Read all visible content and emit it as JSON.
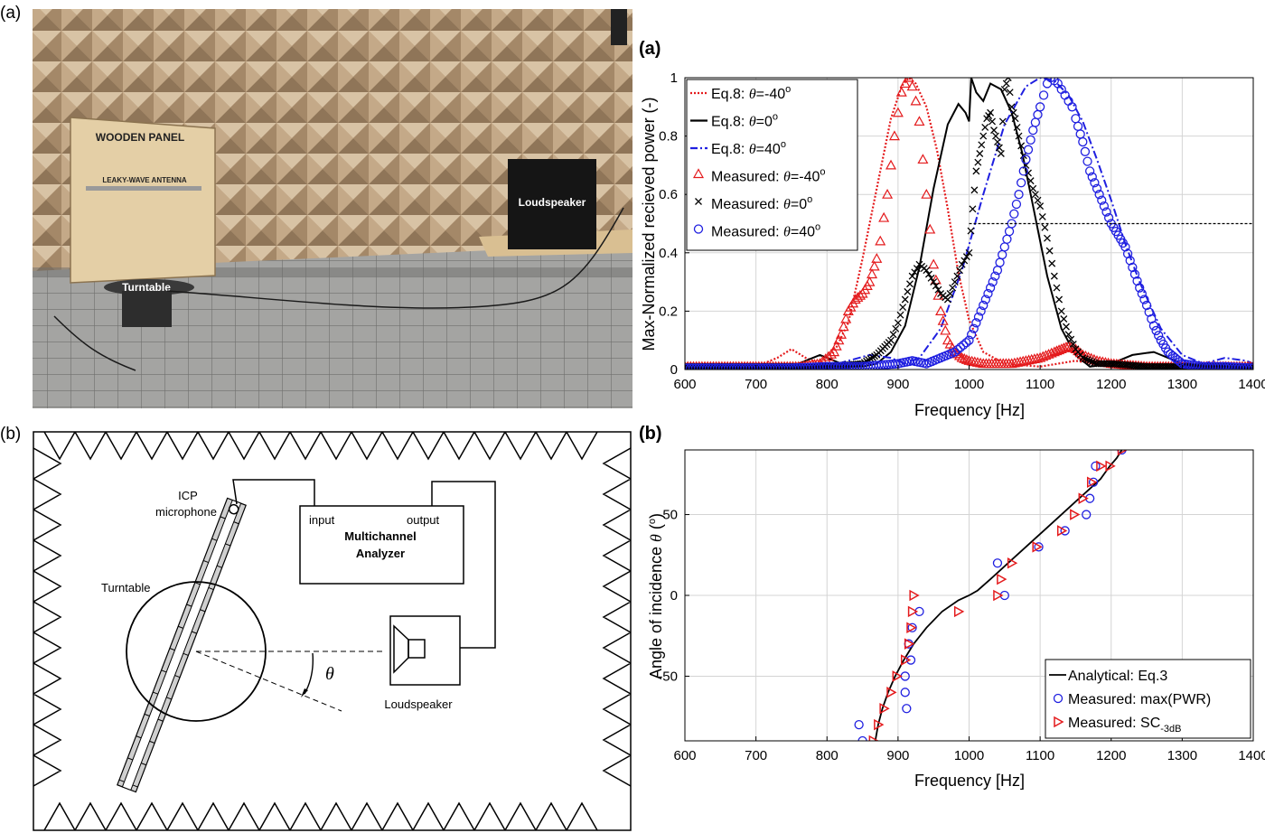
{
  "colors": {
    "red": "#e41a1c",
    "black": "#000000",
    "blue": "#1f1fe0",
    "photo_wall": "#b59a7a",
    "photo_floor": "#9a9a98"
  },
  "photo": {
    "tag": "(a)",
    "label_panel": "WOODEN PANEL",
    "label_antenna": "LEAKY-WAVE ANTENNA",
    "label_speaker": "Loudspeaker",
    "label_turntable": "Turntable"
  },
  "schematic": {
    "tag": "(b)",
    "mic_line1": "ICP",
    "mic_line2": "microphone",
    "input": "input",
    "output": "output",
    "analyzer_line1": "Multichannel",
    "analyzer_line2": "Analyzer",
    "turntable": "Turntable",
    "theta": "θ",
    "loudspeaker": "Loudspeaker"
  },
  "chart_data": [
    {
      "type": "line",
      "tag": "(a)",
      "xlabel": "Frequency [Hz]",
      "ylabel": "Max-Normalized recieved power (-)",
      "xlim": [
        600,
        1400
      ],
      "ylim": [
        0,
        1
      ],
      "xticks": [
        "600",
        "700",
        "800",
        "900",
        "1000",
        "1100",
        "1200",
        "1300",
        "1400"
      ],
      "yticks": [
        "0",
        "0.2",
        "0.4",
        "0.6",
        "0.8",
        "1"
      ],
      "grid": true,
      "legend_position": "top-left",
      "threshold_y": 0.5,
      "legend": [
        {
          "prefix": "Eq.8: ",
          "sym": "θ",
          "suffix": "=-40",
          "sup": "o"
        },
        {
          "prefix": "Eq.8: ",
          "sym": "θ",
          "suffix": "=0",
          "sup": "o"
        },
        {
          "prefix": "Eq.8: ",
          "sym": "θ",
          "suffix": "=40",
          "sup": "o"
        },
        {
          "prefix": "Measured: ",
          "sym": "θ",
          "suffix": "=-40",
          "sup": "o"
        },
        {
          "prefix": "Measured: ",
          "sym": "θ",
          "suffix": "=0",
          "sup": "o"
        },
        {
          "prefix": "Measured: ",
          "sym": "θ",
          "suffix": "=40",
          "sup": "o"
        }
      ],
      "series": [
        {
          "name": "Eq.8: θ=-40°",
          "style": "dotted",
          "color": "#e41a1c",
          "x": [
            600,
            650,
            700,
            730,
            750,
            770,
            790,
            810,
            830,
            850,
            870,
            890,
            905,
            915,
            925,
            940,
            955,
            970,
            985,
            1000,
            1020,
            1050,
            1100,
            1150,
            1200,
            1300,
            1400
          ],
          "y": [
            0.002,
            0.004,
            0.01,
            0.04,
            0.07,
            0.04,
            0.02,
            0.06,
            0.16,
            0.38,
            0.62,
            0.86,
            0.97,
            1.0,
            0.98,
            0.9,
            0.75,
            0.55,
            0.33,
            0.17,
            0.06,
            0.02,
            0.01,
            0.03,
            0.01,
            0.005,
            0.002
          ]
        },
        {
          "name": "Eq.8: θ=0°",
          "style": "solid",
          "color": "#000000",
          "x": [
            600,
            700,
            760,
            790,
            810,
            830,
            850,
            870,
            890,
            910,
            930,
            950,
            970,
            985,
            995,
            1000,
            1003,
            1010,
            1020,
            1030,
            1045,
            1060,
            1075,
            1090,
            1110,
            1130,
            1150,
            1170,
            1200,
            1230,
            1260,
            1300,
            1400
          ],
          "y": [
            0.002,
            0.005,
            0.02,
            0.05,
            0.03,
            0.01,
            0.01,
            0.02,
            0.06,
            0.15,
            0.35,
            0.62,
            0.84,
            0.91,
            0.88,
            0.85,
            1.0,
            0.95,
            0.92,
            0.98,
            0.96,
            0.88,
            0.74,
            0.56,
            0.32,
            0.14,
            0.05,
            0.01,
            0.02,
            0.05,
            0.06,
            0.02,
            0.002
          ]
        },
        {
          "name": "Eq.8: θ=40°",
          "style": "dashdot",
          "color": "#1f1fe0",
          "x": [
            600,
            700,
            800,
            830,
            860,
            890,
            910,
            930,
            960,
            990,
            1020,
            1050,
            1080,
            1100,
            1120,
            1140,
            1160,
            1180,
            1200,
            1220,
            1240,
            1270,
            1300,
            1330,
            1360,
            1390,
            1400
          ],
          "y": [
            0.002,
            0.004,
            0.01,
            0.03,
            0.05,
            0.04,
            0.02,
            0.04,
            0.14,
            0.34,
            0.6,
            0.84,
            0.97,
            1.0,
            0.99,
            0.94,
            0.85,
            0.72,
            0.58,
            0.43,
            0.3,
            0.14,
            0.05,
            0.02,
            0.04,
            0.03,
            0.02
          ]
        },
        {
          "name": "Measured: θ=-40°",
          "style": "triangle",
          "color": "#e41a1c",
          "x": [
            600,
            640,
            680,
            720,
            760,
            790,
            810,
            820,
            830,
            840,
            850,
            860,
            870,
            875,
            880,
            885,
            890,
            895,
            900,
            905,
            910,
            915,
            920,
            925,
            930,
            935,
            940,
            945,
            950,
            960,
            970,
            980,
            990,
            1000,
            1020,
            1040,
            1060,
            1080,
            1100,
            1120,
            1130,
            1140,
            1150,
            1160,
            1180,
            1200,
            1250,
            1300,
            1350,
            1400
          ],
          "y": [
            0.01,
            0.01,
            0.01,
            0.01,
            0.01,
            0.02,
            0.06,
            0.12,
            0.2,
            0.24,
            0.26,
            0.3,
            0.38,
            0.44,
            0.52,
            0.6,
            0.7,
            0.8,
            0.88,
            0.95,
            0.98,
            1.0,
            0.97,
            0.92,
            0.85,
            0.72,
            0.6,
            0.48,
            0.36,
            0.2,
            0.1,
            0.06,
            0.04,
            0.03,
            0.02,
            0.02,
            0.02,
            0.03,
            0.04,
            0.06,
            0.07,
            0.08,
            0.07,
            0.05,
            0.03,
            0.02,
            0.01,
            0.01,
            0.01,
            0.01
          ]
        },
        {
          "name": "Measured: θ=0°",
          "style": "cross",
          "color": "#000000",
          "x": [
            600,
            650,
            700,
            750,
            800,
            850,
            870,
            890,
            900,
            910,
            920,
            930,
            940,
            950,
            960,
            970,
            980,
            990,
            1000,
            1005,
            1010,
            1015,
            1020,
            1025,
            1030,
            1035,
            1040,
            1045,
            1050,
            1055,
            1060,
            1065,
            1070,
            1080,
            1090,
            1100,
            1110,
            1120,
            1130,
            1140,
            1150,
            1160,
            1170,
            1180,
            1200,
            1250,
            1300,
            1400
          ],
          "y": [
            0.01,
            0.01,
            0.01,
            0.01,
            0.01,
            0.02,
            0.05,
            0.1,
            0.16,
            0.24,
            0.32,
            0.36,
            0.34,
            0.3,
            0.26,
            0.24,
            0.3,
            0.36,
            0.4,
            0.55,
            0.68,
            0.74,
            0.8,
            0.86,
            0.88,
            0.82,
            0.78,
            0.74,
            0.96,
            1.0,
            0.9,
            0.86,
            0.8,
            0.7,
            0.62,
            0.56,
            0.45,
            0.32,
            0.2,
            0.12,
            0.07,
            0.04,
            0.03,
            0.02,
            0.02,
            0.01,
            0.01,
            0.01
          ]
        },
        {
          "name": "Measured: θ=40°",
          "style": "circle",
          "color": "#1f1fe0",
          "x": [
            600,
            650,
            700,
            750,
            800,
            850,
            900,
            920,
            940,
            960,
            980,
            1000,
            1010,
            1020,
            1030,
            1040,
            1050,
            1060,
            1070,
            1080,
            1090,
            1100,
            1105,
            1110,
            1115,
            1120,
            1125,
            1130,
            1135,
            1140,
            1145,
            1150,
            1160,
            1170,
            1180,
            1190,
            1200,
            1210,
            1220,
            1230,
            1240,
            1250,
            1260,
            1270,
            1280,
            1290,
            1300,
            1330,
            1360,
            1400
          ],
          "y": [
            0.005,
            0.005,
            0.005,
            0.005,
            0.01,
            0.01,
            0.02,
            0.03,
            0.02,
            0.04,
            0.06,
            0.1,
            0.16,
            0.22,
            0.28,
            0.34,
            0.42,
            0.5,
            0.6,
            0.72,
            0.82,
            0.9,
            0.94,
            0.98,
            1.0,
            0.99,
            0.98,
            0.96,
            0.94,
            0.92,
            0.9,
            0.86,
            0.78,
            0.68,
            0.62,
            0.56,
            0.5,
            0.46,
            0.42,
            0.35,
            0.28,
            0.22,
            0.15,
            0.1,
            0.06,
            0.04,
            0.02,
            0.01,
            0.01,
            0.005
          ]
        }
      ]
    },
    {
      "type": "scatter",
      "tag": "(b)",
      "xlabel": "Frequency [Hz]",
      "ylabel": "Angle of incidence θ (°)",
      "ylabel_prefix": "Angle of incidence ",
      "ylabel_sym": "θ",
      "ylabel_unit": " (",
      "ylabel_unit_sup": "o",
      "ylabel_unit_close": ")",
      "xlim": [
        600,
        1400
      ],
      "ylim": [
        -90,
        90
      ],
      "xticks": [
        "600",
        "700",
        "800",
        "900",
        "1000",
        "1100",
        "1200",
        "1300",
        "1400"
      ],
      "yticks": [
        "-50",
        "0",
        "50"
      ],
      "grid": true,
      "legend_position": "bottom-right",
      "legend": [
        {
          "label": "Analytical: Eq.3",
          "sub": ""
        },
        {
          "label": "Measured: max(PWR)",
          "sub": ""
        },
        {
          "label": "Measured: SC",
          "sub": "-3dB"
        }
      ],
      "series": [
        {
          "name": "Analytical: Eq.3",
          "style": "solid",
          "color": "#000000",
          "x": [
            868,
            872,
            878,
            886,
            896,
            908,
            922,
            940,
            962,
            985,
            1000,
            1012,
            1030,
            1055,
            1080,
            1105,
            1130,
            1150,
            1170,
            1185,
            1198,
            1208,
            1215
          ],
          "y": [
            -90,
            -80,
            -70,
            -60,
            -50,
            -40,
            -30,
            -20,
            -10,
            -3,
            0,
            3,
            10,
            20,
            30,
            40,
            50,
            58,
            66,
            72,
            80,
            85,
            90
          ]
        },
        {
          "name": "Measured: max(PWR)",
          "style": "circle",
          "color": "#1f1fe0",
          "x": [
            850,
            845,
            912,
            910,
            910,
            918,
            915,
            920,
            930,
            1050,
            1040,
            1098,
            1135,
            1165,
            1170,
            1175,
            1178,
            1215
          ],
          "y": [
            -90,
            -80,
            -70,
            -60,
            -50,
            -40,
            -30,
            -20,
            -10,
            0,
            20,
            30,
            40,
            50,
            60,
            70,
            80,
            90
          ]
        },
        {
          "name": "Measured: SC-3dB",
          "style": "triangle",
          "color": "#e41a1c",
          "x": [
            865,
            872,
            880,
            890,
            898,
            910,
            915,
            918,
            920,
            922,
            985,
            1040,
            1045,
            1060,
            1095,
            1130,
            1148,
            1160,
            1172,
            1185,
            1198,
            1215
          ],
          "y": [
            -90,
            -80,
            -70,
            -60,
            -50,
            -40,
            -30,
            -20,
            -10,
            0,
            -10,
            0,
            10,
            20,
            30,
            40,
            50,
            60,
            70,
            80,
            80,
            90
          ]
        }
      ]
    }
  ]
}
